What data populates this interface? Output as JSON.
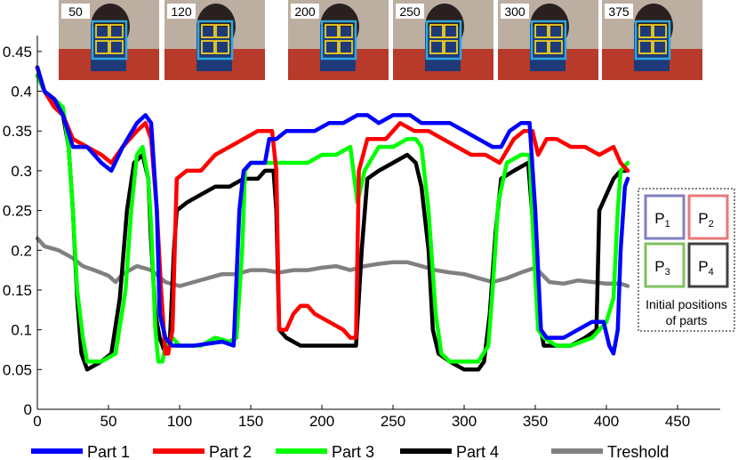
{
  "chart_data": {
    "type": "line",
    "xlim": [
      0,
      480
    ],
    "ylim": [
      0,
      0.47
    ],
    "x_ticks": [
      "0",
      "50",
      "100",
      "150",
      "200",
      "250",
      "300",
      "350",
      "400",
      "450"
    ],
    "y_ticks": [
      "0",
      "0.05",
      "0.1",
      "0.15",
      "0.2",
      "0.25",
      "0.3",
      "0.35",
      "0.4",
      "0.45"
    ],
    "grid": false,
    "legend_position": "bottom",
    "colors": {
      "part1": "#0000ff",
      "part2": "#ff0000",
      "part3": "#00ff00",
      "part4": "#000000",
      "threshold": "#808080"
    },
    "series": [
      {
        "name": "Part 1",
        "points": [
          [
            0,
            0.43
          ],
          [
            5,
            0.4
          ],
          [
            12,
            0.39
          ],
          [
            18,
            0.37
          ],
          [
            25,
            0.33
          ],
          [
            35,
            0.33
          ],
          [
            45,
            0.31
          ],
          [
            52,
            0.3
          ],
          [
            60,
            0.33
          ],
          [
            70,
            0.36
          ],
          [
            76,
            0.37
          ],
          [
            80,
            0.36
          ],
          [
            84,
            0.25
          ],
          [
            86,
            0.12
          ],
          [
            90,
            0.09
          ],
          [
            95,
            0.08
          ],
          [
            110,
            0.08
          ],
          [
            130,
            0.085
          ],
          [
            138,
            0.08
          ],
          [
            142,
            0.25
          ],
          [
            145,
            0.3
          ],
          [
            150,
            0.31
          ],
          [
            155,
            0.31
          ],
          [
            160,
            0.31
          ],
          [
            163,
            0.34
          ],
          [
            168,
            0.34
          ],
          [
            175,
            0.35
          ],
          [
            185,
            0.35
          ],
          [
            195,
            0.35
          ],
          [
            205,
            0.36
          ],
          [
            215,
            0.36
          ],
          [
            225,
            0.37
          ],
          [
            232,
            0.37
          ],
          [
            240,
            0.36
          ],
          [
            250,
            0.37
          ],
          [
            262,
            0.37
          ],
          [
            270,
            0.36
          ],
          [
            280,
            0.36
          ],
          [
            290,
            0.36
          ],
          [
            300,
            0.35
          ],
          [
            310,
            0.34
          ],
          [
            320,
            0.33
          ],
          [
            326,
            0.33
          ],
          [
            332,
            0.35
          ],
          [
            340,
            0.36
          ],
          [
            346,
            0.36
          ],
          [
            350,
            0.25
          ],
          [
            354,
            0.1
          ],
          [
            358,
            0.09
          ],
          [
            370,
            0.09
          ],
          [
            380,
            0.1
          ],
          [
            390,
            0.11
          ],
          [
            398,
            0.11
          ],
          [
            402,
            0.08
          ],
          [
            405,
            0.07
          ],
          [
            408,
            0.1
          ],
          [
            410,
            0.2
          ],
          [
            413,
            0.28
          ],
          [
            415,
            0.29
          ]
        ]
      },
      {
        "name": "Part 2",
        "points": [
          [
            0,
            0.43
          ],
          [
            5,
            0.4
          ],
          [
            12,
            0.38
          ],
          [
            18,
            0.37
          ],
          [
            25,
            0.34
          ],
          [
            35,
            0.33
          ],
          [
            45,
            0.32
          ],
          [
            52,
            0.31
          ],
          [
            60,
            0.33
          ],
          [
            70,
            0.35
          ],
          [
            76,
            0.36
          ],
          [
            80,
            0.34
          ],
          [
            84,
            0.25
          ],
          [
            87,
            0.15
          ],
          [
            90,
            0.07
          ],
          [
            92,
            0.07
          ],
          [
            95,
            0.1
          ],
          [
            98,
            0.29
          ],
          [
            105,
            0.3
          ],
          [
            115,
            0.3
          ],
          [
            125,
            0.32
          ],
          [
            135,
            0.33
          ],
          [
            145,
            0.34
          ],
          [
            155,
            0.35
          ],
          [
            165,
            0.35
          ],
          [
            168,
            0.3
          ],
          [
            170,
            0.1
          ],
          [
            175,
            0.1
          ],
          [
            180,
            0.12
          ],
          [
            185,
            0.13
          ],
          [
            190,
            0.13
          ],
          [
            195,
            0.12
          ],
          [
            205,
            0.11
          ],
          [
            215,
            0.1
          ],
          [
            220,
            0.09
          ],
          [
            224,
            0.09
          ],
          [
            226,
            0.3
          ],
          [
            232,
            0.34
          ],
          [
            245,
            0.34
          ],
          [
            255,
            0.36
          ],
          [
            265,
            0.35
          ],
          [
            275,
            0.35
          ],
          [
            285,
            0.34
          ],
          [
            295,
            0.33
          ],
          [
            305,
            0.32
          ],
          [
            315,
            0.32
          ],
          [
            325,
            0.31
          ],
          [
            335,
            0.34
          ],
          [
            342,
            0.35
          ],
          [
            348,
            0.35
          ],
          [
            352,
            0.32
          ],
          [
            358,
            0.34
          ],
          [
            365,
            0.34
          ],
          [
            375,
            0.33
          ],
          [
            385,
            0.33
          ],
          [
            395,
            0.32
          ],
          [
            405,
            0.33
          ],
          [
            410,
            0.31
          ],
          [
            415,
            0.3
          ]
        ]
      },
      {
        "name": "Part 3",
        "points": [
          [
            0,
            0.42
          ],
          [
            5,
            0.4
          ],
          [
            12,
            0.39
          ],
          [
            18,
            0.38
          ],
          [
            22,
            0.33
          ],
          [
            25,
            0.25
          ],
          [
            28,
            0.15
          ],
          [
            32,
            0.09
          ],
          [
            35,
            0.06
          ],
          [
            45,
            0.06
          ],
          [
            55,
            0.07
          ],
          [
            62,
            0.15
          ],
          [
            66,
            0.25
          ],
          [
            70,
            0.32
          ],
          [
            74,
            0.33
          ],
          [
            78,
            0.29
          ],
          [
            80,
            0.23
          ],
          [
            83,
            0.1
          ],
          [
            85,
            0.06
          ],
          [
            88,
            0.06
          ],
          [
            90,
            0.08
          ],
          [
            95,
            0.09
          ],
          [
            100,
            0.08
          ],
          [
            115,
            0.08
          ],
          [
            125,
            0.09
          ],
          [
            135,
            0.085
          ],
          [
            140,
            0.09
          ],
          [
            144,
            0.2
          ],
          [
            146,
            0.3
          ],
          [
            150,
            0.31
          ],
          [
            160,
            0.31
          ],
          [
            165,
            0.31
          ],
          [
            170,
            0.31
          ],
          [
            180,
            0.31
          ],
          [
            190,
            0.31
          ],
          [
            200,
            0.32
          ],
          [
            210,
            0.32
          ],
          [
            220,
            0.33
          ],
          [
            225,
            0.26
          ],
          [
            230,
            0.3
          ],
          [
            240,
            0.33
          ],
          [
            250,
            0.33
          ],
          [
            260,
            0.34
          ],
          [
            266,
            0.34
          ],
          [
            270,
            0.33
          ],
          [
            275,
            0.25
          ],
          [
            280,
            0.12
          ],
          [
            284,
            0.07
          ],
          [
            290,
            0.06
          ],
          [
            300,
            0.06
          ],
          [
            310,
            0.06
          ],
          [
            317,
            0.08
          ],
          [
            320,
            0.15
          ],
          [
            324,
            0.26
          ],
          [
            330,
            0.31
          ],
          [
            340,
            0.32
          ],
          [
            346,
            0.32
          ],
          [
            349,
            0.2
          ],
          [
            352,
            0.1
          ],
          [
            356,
            0.09
          ],
          [
            365,
            0.08
          ],
          [
            375,
            0.08
          ],
          [
            390,
            0.09
          ],
          [
            400,
            0.11
          ],
          [
            405,
            0.14
          ],
          [
            408,
            0.25
          ],
          [
            410,
            0.3
          ],
          [
            415,
            0.31
          ]
        ]
      },
      {
        "name": "Part 4",
        "points": [
          [
            0,
            0.42
          ],
          [
            5,
            0.4
          ],
          [
            12,
            0.38
          ],
          [
            18,
            0.37
          ],
          [
            22,
            0.33
          ],
          [
            25,
            0.25
          ],
          [
            28,
            0.14
          ],
          [
            31,
            0.07
          ],
          [
            35,
            0.05
          ],
          [
            45,
            0.06
          ],
          [
            52,
            0.07
          ],
          [
            58,
            0.14
          ],
          [
            63,
            0.25
          ],
          [
            68,
            0.31
          ],
          [
            74,
            0.32
          ],
          [
            78,
            0.29
          ],
          [
            80,
            0.21
          ],
          [
            83,
            0.12
          ],
          [
            86,
            0.09
          ],
          [
            90,
            0.07
          ],
          [
            93,
            0.08
          ],
          [
            96,
            0.2
          ],
          [
            98,
            0.25
          ],
          [
            105,
            0.26
          ],
          [
            115,
            0.27
          ],
          [
            125,
            0.28
          ],
          [
            135,
            0.28
          ],
          [
            145,
            0.29
          ],
          [
            155,
            0.29
          ],
          [
            160,
            0.3
          ],
          [
            166,
            0.3
          ],
          [
            168,
            0.25
          ],
          [
            170,
            0.1
          ],
          [
            175,
            0.09
          ],
          [
            185,
            0.08
          ],
          [
            195,
            0.08
          ],
          [
            205,
            0.08
          ],
          [
            215,
            0.08
          ],
          [
            224,
            0.08
          ],
          [
            228,
            0.2
          ],
          [
            232,
            0.29
          ],
          [
            240,
            0.3
          ],
          [
            250,
            0.31
          ],
          [
            260,
            0.32
          ],
          [
            266,
            0.31
          ],
          [
            270,
            0.28
          ],
          [
            275,
            0.2
          ],
          [
            278,
            0.1
          ],
          [
            282,
            0.07
          ],
          [
            290,
            0.06
          ],
          [
            300,
            0.05
          ],
          [
            310,
            0.05
          ],
          [
            314,
            0.06
          ],
          [
            318,
            0.12
          ],
          [
            322,
            0.22
          ],
          [
            326,
            0.29
          ],
          [
            335,
            0.3
          ],
          [
            345,
            0.31
          ],
          [
            349,
            0.22
          ],
          [
            352,
            0.12
          ],
          [
            356,
            0.08
          ],
          [
            365,
            0.08
          ],
          [
            375,
            0.08
          ],
          [
            385,
            0.09
          ],
          [
            393,
            0.1
          ],
          [
            395,
            0.25
          ],
          [
            400,
            0.27
          ],
          [
            405,
            0.29
          ],
          [
            410,
            0.3
          ],
          [
            415,
            0.3
          ]
        ]
      },
      {
        "name": "Treshold",
        "points": [
          [
            0,
            0.215
          ],
          [
            5,
            0.205
          ],
          [
            15,
            0.2
          ],
          [
            25,
            0.19
          ],
          [
            32,
            0.18
          ],
          [
            40,
            0.175
          ],
          [
            50,
            0.168
          ],
          [
            55,
            0.16
          ],
          [
            60,
            0.17
          ],
          [
            70,
            0.18
          ],
          [
            80,
            0.175
          ],
          [
            90,
            0.16
          ],
          [
            100,
            0.155
          ],
          [
            110,
            0.16
          ],
          [
            120,
            0.165
          ],
          [
            130,
            0.17
          ],
          [
            140,
            0.17
          ],
          [
            150,
            0.175
          ],
          [
            160,
            0.175
          ],
          [
            170,
            0.172
          ],
          [
            180,
            0.175
          ],
          [
            190,
            0.175
          ],
          [
            200,
            0.178
          ],
          [
            210,
            0.18
          ],
          [
            220,
            0.175
          ],
          [
            230,
            0.18
          ],
          [
            240,
            0.183
          ],
          [
            250,
            0.185
          ],
          [
            260,
            0.185
          ],
          [
            270,
            0.18
          ],
          [
            280,
            0.175
          ],
          [
            290,
            0.172
          ],
          [
            300,
            0.17
          ],
          [
            310,
            0.165
          ],
          [
            320,
            0.16
          ],
          [
            330,
            0.165
          ],
          [
            340,
            0.172
          ],
          [
            350,
            0.178
          ],
          [
            360,
            0.16
          ],
          [
            370,
            0.158
          ],
          [
            380,
            0.162
          ],
          [
            390,
            0.16
          ],
          [
            400,
            0.158
          ],
          [
            410,
            0.158
          ],
          [
            415,
            0.155
          ]
        ]
      }
    ]
  },
  "thumbnails": [
    {
      "label": "50",
      "frame": 50
    },
    {
      "label": "120",
      "frame": 120
    },
    {
      "label": "200",
      "frame": 200
    },
    {
      "label": "250",
      "frame": 250
    },
    {
      "label": "300",
      "frame": 300
    },
    {
      "label": "375",
      "frame": 375
    }
  ],
  "parts_panel": {
    "parts": [
      {
        "sub": "1",
        "color": "#8080c0"
      },
      {
        "sub": "2",
        "color": "#e87878"
      },
      {
        "sub": "3",
        "color": "#80c060"
      },
      {
        "sub": "4",
        "color": "#404040"
      }
    ],
    "part_letter": "P",
    "caption_line1": "Initial positions",
    "caption_line2": "of parts"
  }
}
